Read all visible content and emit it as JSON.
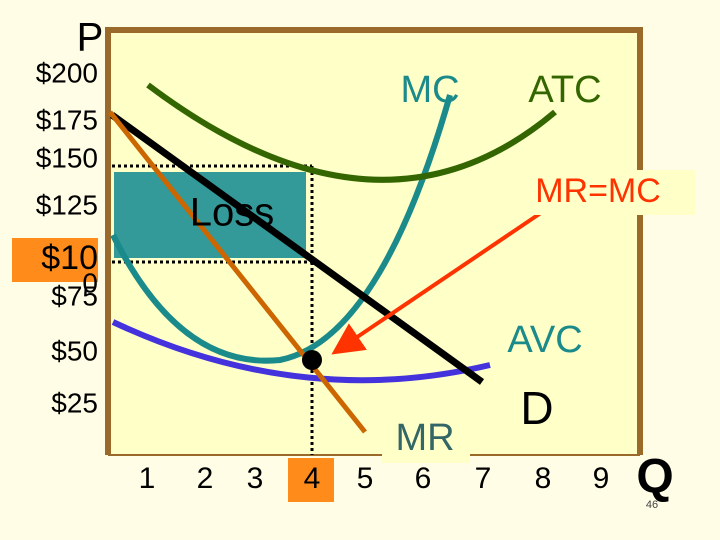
{
  "axes": {
    "y_title": "P",
    "x_title": "Q",
    "y_labels": [
      "$200",
      "$175",
      "$150",
      "$125",
      "$10",
      "0",
      "$75",
      "$50",
      "$25"
    ],
    "x_labels": [
      "1",
      "2",
      "3",
      "4",
      "5",
      "6",
      "7",
      "8",
      "9"
    ]
  },
  "curves": {
    "mc": "MC",
    "atc": "ATC",
    "avc": "AVC",
    "demand": "D",
    "mr": "MR"
  },
  "annotations": {
    "loss": "Loss",
    "rule": "MR=MC"
  },
  "slide_number": "46"
}
